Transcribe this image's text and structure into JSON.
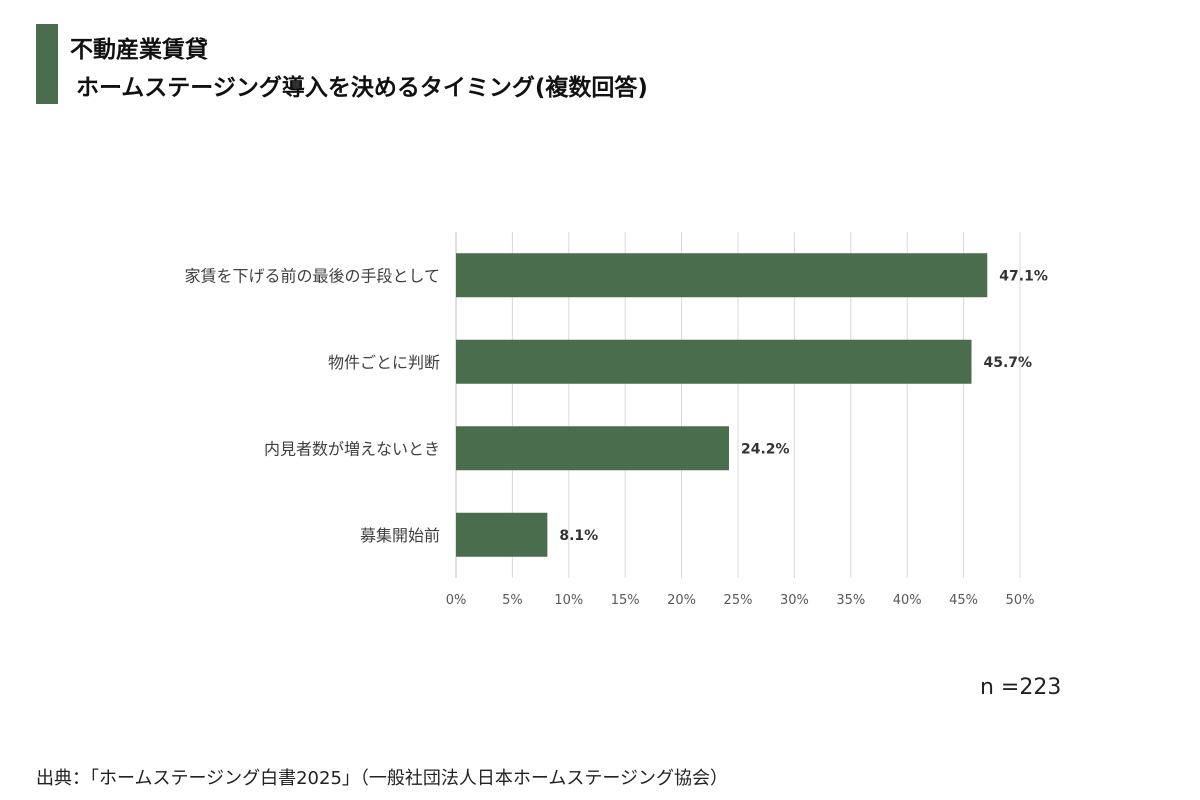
{
  "header": {
    "title_line1": "不動産業賃貸",
    "title_line2": "ホームステージング導入を決めるタイミング(複数回答)"
  },
  "colors": {
    "accent": "#4a6e4d",
    "grid": "#d9d9d9",
    "axis": "#bfbfbf",
    "tick_text": "#595959",
    "label_text": "#404040"
  },
  "chart_data": {
    "type": "bar",
    "orientation": "horizontal",
    "categories": [
      "家賃を下げる前の最後の手段として",
      "物件ごとに判断",
      "内見者数が増えないとき",
      "募集開始前"
    ],
    "values": [
      47.1,
      45.7,
      24.2,
      8.1
    ],
    "data_labels": [
      "47.1%",
      "45.7%",
      "24.2%",
      "8.1%"
    ],
    "xlim": [
      0,
      50
    ],
    "ticks": [
      0,
      5,
      10,
      15,
      20,
      25,
      30,
      35,
      40,
      45,
      50
    ],
    "tick_labels": [
      "0%",
      "5%",
      "10%",
      "15%",
      "20%",
      "25%",
      "30%",
      "35%",
      "40%",
      "45%",
      "50%"
    ],
    "grid": true,
    "legend": "none"
  },
  "footer": {
    "sample_size": "n =223",
    "source": "出典：「ホームステージング白書2025」（一般社団法人日本ホームステージング協会）"
  }
}
